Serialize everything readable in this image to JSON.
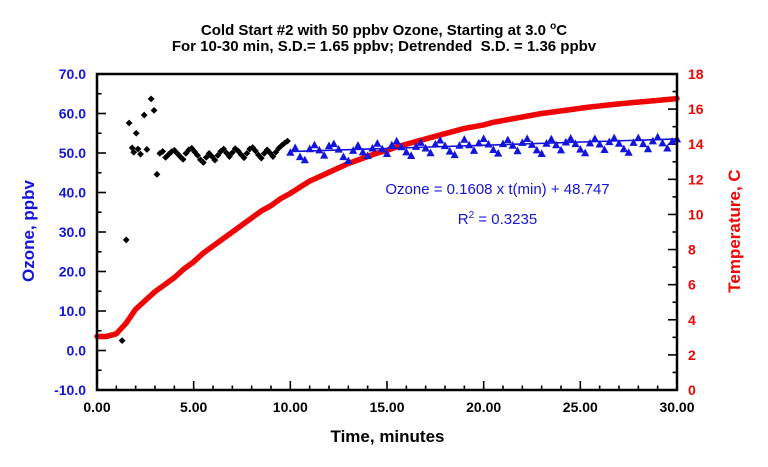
{
  "header": {
    "line1_main": "Cold Start #2 with 50 ppbv Ozone, Starting at 3.0 ",
    "line1_sup": "o",
    "line1_unit": "C",
    "line2": "For 10-30 min, S.D.= 1.65 ppbv; Detrended  S.D. = 1.36 ppbv"
  },
  "chart_data": {
    "type": "scatter",
    "colors": {
      "ozone_blue": "#1414dd",
      "temperature_red": "#ee0606",
      "marker_black": "#000000",
      "frame": "#000000"
    },
    "axes": {
      "x": {
        "title": "Time, minutes",
        "min": 0,
        "max": 30,
        "major_step": 5,
        "minor_step": 1,
        "tick_labels": [
          "0.00",
          "5.00",
          "10.00",
          "15.00",
          "20.00",
          "25.00",
          "30.00"
        ],
        "color": "#000000"
      },
      "left": {
        "title": "Ozone, ppbv",
        "min": -10,
        "max": 70,
        "major_step": 10,
        "minor_step": 5,
        "tick_labels": [
          "-10.0",
          "0.0",
          "10.0",
          "20.0",
          "30.0",
          "40.0",
          "50.0",
          "60.0",
          "70.0"
        ],
        "color": "#1414dd"
      },
      "right": {
        "title": "Temperature, C",
        "min": 0,
        "max": 18,
        "major_step": 2,
        "minor_step": 1,
        "tick_labels": [
          "0",
          "2",
          "4",
          "6",
          "8",
          "10",
          "12",
          "14",
          "16",
          "18"
        ],
        "color": "#ee0606"
      }
    },
    "annotation": {
      "line1": "Ozone = 0.1608 x t(min) + 48.747",
      "r2_base": "R",
      "r2_sup": "2",
      "r2_rest": " = 0.3235",
      "color": "#1414dd"
    },
    "series": [
      {
        "name": "temperature",
        "type": "line",
        "axis": "right",
        "color": "#ee0606",
        "width": 5.5,
        "points": [
          [
            0,
            3.05
          ],
          [
            0.5,
            3.05
          ],
          [
            1,
            3.2
          ],
          [
            1.5,
            3.8
          ],
          [
            2,
            4.6
          ],
          [
            2.5,
            5.1
          ],
          [
            3,
            5.6
          ],
          [
            3.5,
            6.0
          ],
          [
            4,
            6.4
          ],
          [
            4.5,
            6.9
          ],
          [
            5,
            7.3
          ],
          [
            5.5,
            7.8
          ],
          [
            6,
            8.2
          ],
          [
            6.5,
            8.6
          ],
          [
            7,
            9.0
          ],
          [
            7.5,
            9.4
          ],
          [
            8,
            9.8
          ],
          [
            8.5,
            10.2
          ],
          [
            9,
            10.5
          ],
          [
            9.5,
            10.9
          ],
          [
            10,
            11.2
          ],
          [
            10.5,
            11.55
          ],
          [
            11,
            11.9
          ],
          [
            11.5,
            12.15
          ],
          [
            12,
            12.4
          ],
          [
            12.5,
            12.65
          ],
          [
            13,
            12.9
          ],
          [
            13.5,
            13.1
          ],
          [
            14,
            13.3
          ],
          [
            14.5,
            13.5
          ],
          [
            15,
            13.65
          ],
          [
            15.5,
            13.85
          ],
          [
            16,
            14.0
          ],
          [
            16.5,
            14.15
          ],
          [
            17,
            14.3
          ],
          [
            17.5,
            14.45
          ],
          [
            18,
            14.6
          ],
          [
            18.5,
            14.75
          ],
          [
            19,
            14.9
          ],
          [
            19.5,
            15.0
          ],
          [
            20,
            15.1
          ],
          [
            20.5,
            15.25
          ],
          [
            21,
            15.35
          ],
          [
            21.5,
            15.45
          ],
          [
            22,
            15.55
          ],
          [
            22.5,
            15.65
          ],
          [
            23,
            15.75
          ],
          [
            23.5,
            15.82
          ],
          [
            24,
            15.9
          ],
          [
            24.5,
            15.97
          ],
          [
            25,
            16.05
          ],
          [
            25.5,
            16.12
          ],
          [
            26,
            16.18
          ],
          [
            26.5,
            16.24
          ],
          [
            27,
            16.3
          ],
          [
            27.5,
            16.35
          ],
          [
            28,
            16.4
          ],
          [
            28.5,
            16.45
          ],
          [
            29,
            16.5
          ],
          [
            29.5,
            16.55
          ],
          [
            30,
            16.6
          ]
        ]
      },
      {
        "name": "ozone-trendline",
        "type": "line",
        "axis": "left",
        "color": "#1414dd",
        "width": 1.6,
        "points": [
          [
            10,
            50.355
          ],
          [
            30,
            53.571
          ]
        ]
      },
      {
        "name": "ozone-0-10-min",
        "type": "scatter",
        "axis": "left",
        "marker": "diamond",
        "color": "#000000",
        "points": [
          [
            1.3,
            2.5
          ],
          [
            1.51,
            28.0
          ],
          [
            1.66,
            57.6
          ],
          [
            1.82,
            51.3
          ],
          [
            1.9,
            50.2
          ],
          [
            2.03,
            55.0
          ],
          [
            2.12,
            51.0
          ],
          [
            2.25,
            49.7
          ],
          [
            2.44,
            59.6
          ],
          [
            2.58,
            50.9
          ],
          [
            2.8,
            63.7
          ],
          [
            2.95,
            60.8
          ],
          [
            3.1,
            44.6
          ],
          [
            3.25,
            49.9
          ],
          [
            3.4,
            50.4
          ],
          [
            3.55,
            48.9
          ],
          [
            3.7,
            49.6
          ],
          [
            3.85,
            50.3
          ],
          [
            4.0,
            50.7
          ],
          [
            4.15,
            49.9
          ],
          [
            4.3,
            49.1
          ],
          [
            4.45,
            48.4
          ],
          [
            4.6,
            49.9
          ],
          [
            4.75,
            50.8
          ],
          [
            4.9,
            51.2
          ],
          [
            5.05,
            50.3
          ],
          [
            5.2,
            49.4
          ],
          [
            5.35,
            48.3
          ],
          [
            5.5,
            47.6
          ],
          [
            5.65,
            48.9
          ],
          [
            5.8,
            49.9
          ],
          [
            5.95,
            49.1
          ],
          [
            6.1,
            48.2
          ],
          [
            6.25,
            49.4
          ],
          [
            6.4,
            50.4
          ],
          [
            6.55,
            51.0
          ],
          [
            6.7,
            50.0
          ],
          [
            6.85,
            49.1
          ],
          [
            7.0,
            50.1
          ],
          [
            7.15,
            51.1
          ],
          [
            7.3,
            50.5
          ],
          [
            7.45,
            49.6
          ],
          [
            7.6,
            48.8
          ],
          [
            7.75,
            49.9
          ],
          [
            7.9,
            51.0
          ],
          [
            8.05,
            51.4
          ],
          [
            8.2,
            50.5
          ],
          [
            8.35,
            49.5
          ],
          [
            8.5,
            48.7
          ],
          [
            8.65,
            49.9
          ],
          [
            8.8,
            50.8
          ],
          [
            8.95,
            50.0
          ],
          [
            9.1,
            49.1
          ],
          [
            9.25,
            50.2
          ],
          [
            9.4,
            51.2
          ],
          [
            9.55,
            51.9
          ],
          [
            9.7,
            52.5
          ],
          [
            9.85,
            53.0
          ]
        ]
      },
      {
        "name": "ozone-10-30-min",
        "type": "scatter",
        "axis": "left",
        "marker": "triangle",
        "color": "#1414dd",
        "points": [
          [
            10.0,
            50.1
          ],
          [
            10.25,
            51.3
          ],
          [
            10.5,
            49.0
          ],
          [
            10.75,
            48.2
          ],
          [
            11.0,
            51.0
          ],
          [
            11.25,
            52.0
          ],
          [
            11.5,
            50.7
          ],
          [
            11.75,
            49.4
          ],
          [
            12.0,
            51.8
          ],
          [
            12.25,
            52.3
          ],
          [
            12.5,
            50.9
          ],
          [
            12.75,
            49.0
          ],
          [
            13.0,
            48.0
          ],
          [
            13.25,
            50.6
          ],
          [
            13.5,
            51.9
          ],
          [
            13.75,
            50.2
          ],
          [
            14.0,
            49.3
          ],
          [
            14.25,
            51.2
          ],
          [
            14.5,
            52.4
          ],
          [
            14.75,
            51.0
          ],
          [
            15.0,
            49.8
          ],
          [
            15.25,
            52.0
          ],
          [
            15.5,
            53.0
          ],
          [
            15.75,
            51.5
          ],
          [
            16.0,
            50.2
          ],
          [
            16.25,
            49.3
          ],
          [
            16.5,
            51.6
          ],
          [
            16.75,
            52.6
          ],
          [
            17.0,
            51.2
          ],
          [
            17.25,
            50.0
          ],
          [
            17.5,
            52.2
          ],
          [
            17.75,
            53.2
          ],
          [
            18.0,
            51.8
          ],
          [
            18.25,
            50.4
          ],
          [
            18.5,
            49.5
          ],
          [
            18.75,
            51.9
          ],
          [
            19.0,
            53.4
          ],
          [
            19.25,
            52.0
          ],
          [
            19.5,
            50.6
          ],
          [
            19.75,
            52.5
          ],
          [
            20.0,
            53.6
          ],
          [
            20.25,
            52.2
          ],
          [
            20.5,
            50.8
          ],
          [
            20.75,
            49.9
          ],
          [
            21.0,
            52.3
          ],
          [
            21.25,
            53.3
          ],
          [
            21.5,
            51.9
          ],
          [
            21.75,
            50.5
          ],
          [
            22.0,
            52.6
          ],
          [
            22.25,
            53.6
          ],
          [
            22.5,
            52.1
          ],
          [
            22.75,
            50.7
          ],
          [
            23.0,
            49.8
          ],
          [
            23.25,
            52.4
          ],
          [
            23.5,
            53.5
          ],
          [
            23.75,
            52.0
          ],
          [
            24.0,
            50.7
          ],
          [
            24.25,
            52.7
          ],
          [
            24.5,
            53.7
          ],
          [
            24.75,
            52.3
          ],
          [
            25.0,
            50.9
          ],
          [
            25.25,
            50.0
          ],
          [
            25.5,
            52.5
          ],
          [
            25.75,
            53.6
          ],
          [
            26.0,
            52.2
          ],
          [
            26.25,
            50.8
          ],
          [
            26.5,
            52.8
          ],
          [
            26.75,
            53.8
          ],
          [
            27.0,
            52.4
          ],
          [
            27.25,
            51.0
          ],
          [
            27.5,
            50.1
          ],
          [
            27.75,
            52.6
          ],
          [
            28.0,
            53.8
          ],
          [
            28.25,
            52.3
          ],
          [
            28.5,
            51.0
          ],
          [
            28.75,
            53.0
          ],
          [
            29.0,
            54.0
          ],
          [
            29.25,
            52.5
          ],
          [
            29.5,
            51.2
          ],
          [
            29.75,
            52.9
          ],
          [
            30.0,
            53.5
          ]
        ]
      }
    ]
  }
}
